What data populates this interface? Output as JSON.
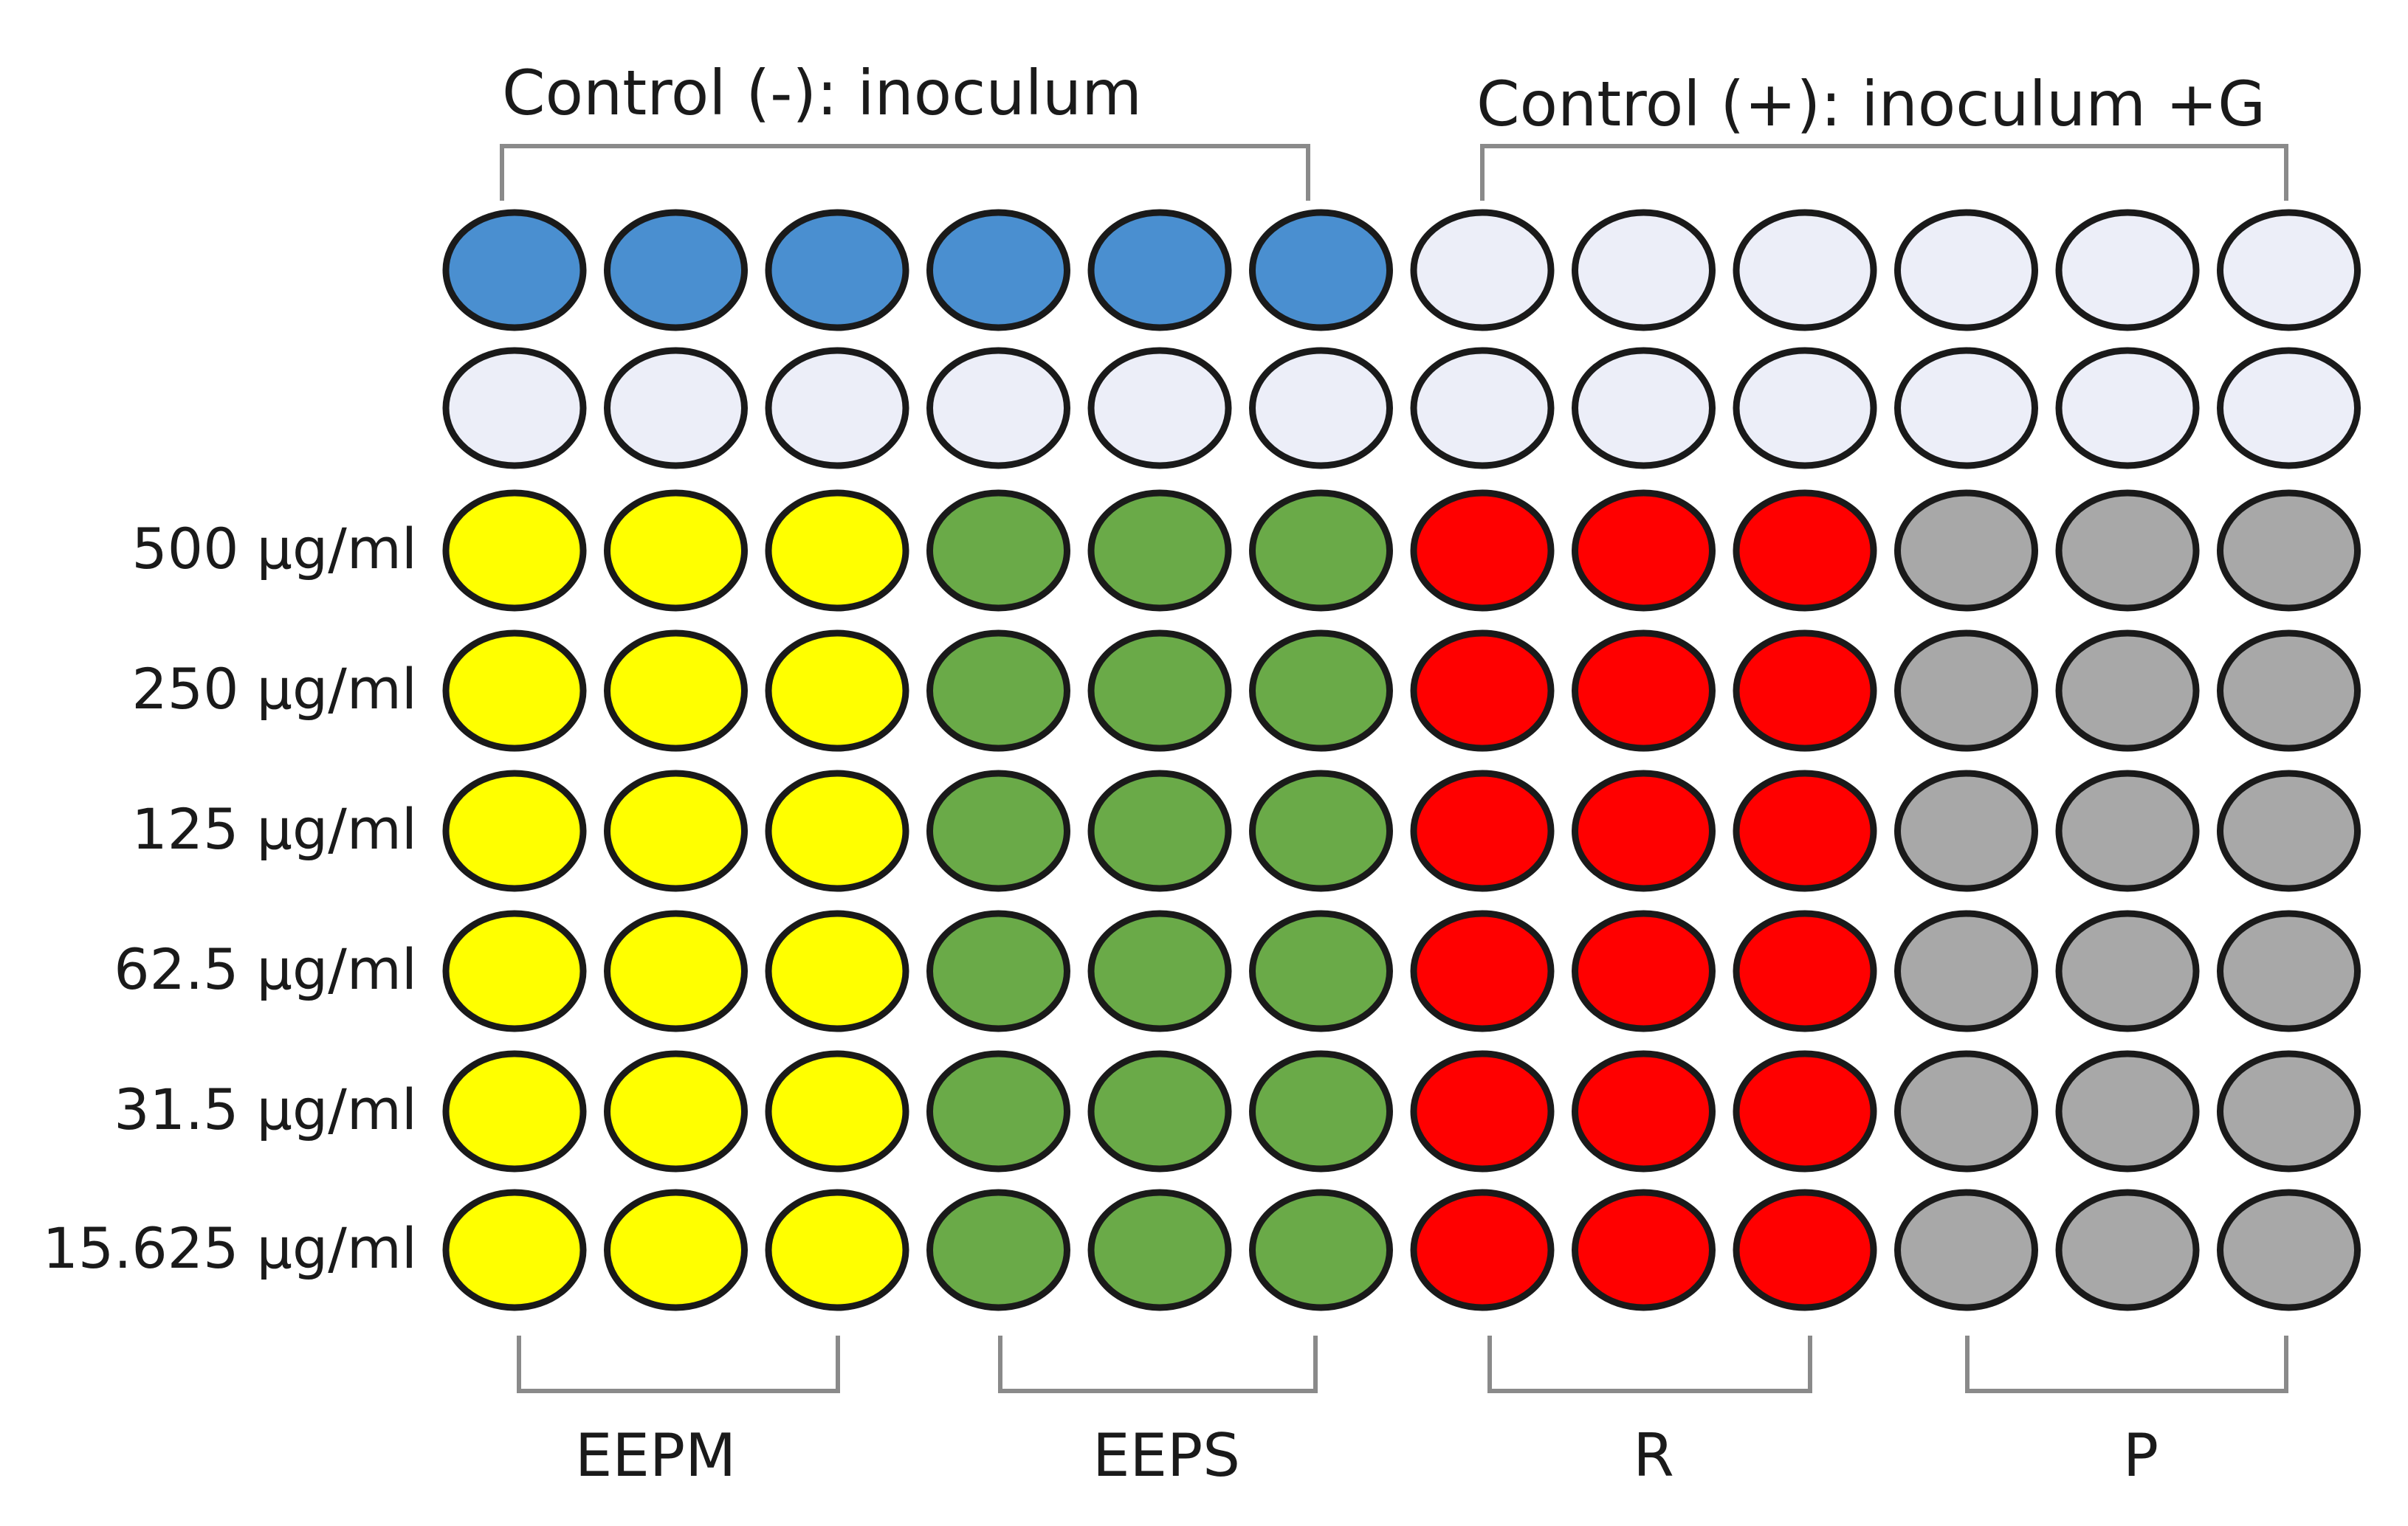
{
  "top_groups": [
    {
      "label": "Control (-): inoculum"
    },
    {
      "label": "Control (+): inoculum +G"
    }
  ],
  "bottom_groups": [
    {
      "label": "EEPM"
    },
    {
      "label": "EEPS"
    },
    {
      "label": "R"
    },
    {
      "label": "P"
    }
  ],
  "row_labels": [
    "",
    "",
    "500 µg/ml",
    "250 µg/ml",
    "125 µg/ml",
    "62.5 µg/ml",
    "31.5 µg/ml",
    "15.625 µg/ml"
  ],
  "colors": {
    "negative_control": "#4a8fd0",
    "empty": "#eceef8",
    "EEPM": "#ffff00",
    "EEPS": "#6aaa48",
    "R": "#ff0000",
    "P": "#a8a8a8"
  },
  "wells": [
    [
      "negative_control",
      "negative_control",
      "negative_control",
      "negative_control",
      "negative_control",
      "negative_control",
      "empty",
      "empty",
      "empty",
      "empty",
      "empty",
      "empty"
    ],
    [
      "empty",
      "empty",
      "empty",
      "empty",
      "empty",
      "empty",
      "empty",
      "empty",
      "empty",
      "empty",
      "empty",
      "empty"
    ],
    [
      "EEPM",
      "EEPM",
      "EEPM",
      "EEPS",
      "EEPS",
      "EEPS",
      "R",
      "R",
      "R",
      "P",
      "P",
      "P"
    ],
    [
      "EEPM",
      "EEPM",
      "EEPM",
      "EEPS",
      "EEPS",
      "EEPS",
      "R",
      "R",
      "R",
      "P",
      "P",
      "P"
    ],
    [
      "EEPM",
      "EEPM",
      "EEPM",
      "EEPS",
      "EEPS",
      "EEPS",
      "R",
      "R",
      "R",
      "P",
      "P",
      "P"
    ],
    [
      "EEPM",
      "EEPM",
      "EEPM",
      "EEPS",
      "EEPS",
      "EEPS",
      "R",
      "R",
      "R",
      "P",
      "P",
      "P"
    ],
    [
      "EEPM",
      "EEPM",
      "EEPM",
      "EEPS",
      "EEPS",
      "EEPS",
      "R",
      "R",
      "R",
      "P",
      "P",
      "P"
    ],
    [
      "EEPM",
      "EEPM",
      "EEPM",
      "EEPS",
      "EEPS",
      "EEPS",
      "R",
      "R",
      "R",
      "P",
      "P",
      "P"
    ]
  ]
}
